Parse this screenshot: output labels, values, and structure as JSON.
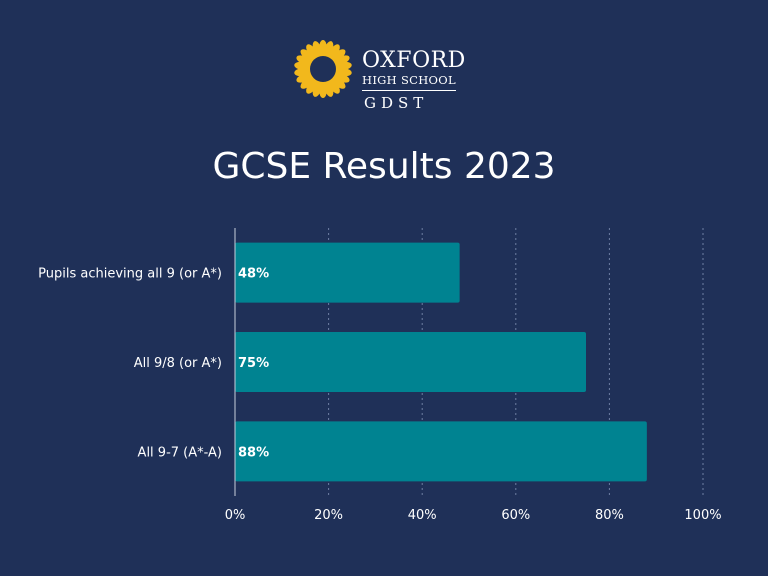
{
  "logo": {
    "name": "OXFORD",
    "sub": "HIGH SCHOOL",
    "org": "GDST",
    "icon": "sunflower-icon",
    "icon_color": "#f2b81c"
  },
  "colors": {
    "background": "#1f3058",
    "bar": "#008391",
    "grid": "#6f7fa3",
    "text": "#ffffff"
  },
  "chart_data": {
    "type": "bar",
    "orientation": "horizontal",
    "title": "GCSE Results 2023",
    "categories": [
      "Pupils achieving all 9 (or A*)",
      "All 9/8 (or A*)",
      "All 9-7 (A*-A)"
    ],
    "values": [
      48,
      75,
      88
    ],
    "value_labels": [
      "48%",
      "75%",
      "88%"
    ],
    "xlim": [
      0,
      100
    ],
    "xticks": [
      0,
      20,
      40,
      60,
      80,
      100
    ],
    "xtick_labels": [
      "0%",
      "20%",
      "40%",
      "60%",
      "80%",
      "100%"
    ],
    "grid": "vertical-dotted",
    "legend": "none"
  }
}
